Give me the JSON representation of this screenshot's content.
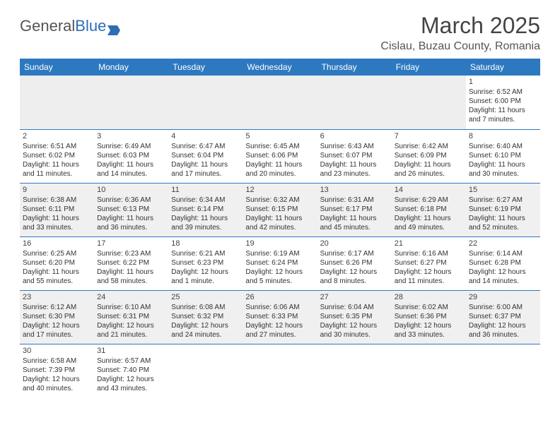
{
  "logo": {
    "text1": "General",
    "text2": "Blue"
  },
  "title": "March 2025",
  "location": "Cislau, Buzau County, Romania",
  "colors": {
    "header_bg": "#2d79c0",
    "header_text": "#ffffff",
    "rule": "#2d79c0",
    "alt_row_bg": "#f0f0f0",
    "text": "#333333",
    "logo_blue": "#2d6eb5"
  },
  "dayNames": [
    "Sunday",
    "Monday",
    "Tuesday",
    "Wednesday",
    "Thursday",
    "Friday",
    "Saturday"
  ],
  "weeks": [
    [
      null,
      null,
      null,
      null,
      null,
      null,
      {
        "n": "1",
        "sr": "Sunrise: 6:52 AM",
        "ss": "Sunset: 6:00 PM",
        "d1": "Daylight: 11 hours",
        "d2": "and 7 minutes."
      }
    ],
    [
      {
        "n": "2",
        "sr": "Sunrise: 6:51 AM",
        "ss": "Sunset: 6:02 PM",
        "d1": "Daylight: 11 hours",
        "d2": "and 11 minutes."
      },
      {
        "n": "3",
        "sr": "Sunrise: 6:49 AM",
        "ss": "Sunset: 6:03 PM",
        "d1": "Daylight: 11 hours",
        "d2": "and 14 minutes."
      },
      {
        "n": "4",
        "sr": "Sunrise: 6:47 AM",
        "ss": "Sunset: 6:04 PM",
        "d1": "Daylight: 11 hours",
        "d2": "and 17 minutes."
      },
      {
        "n": "5",
        "sr": "Sunrise: 6:45 AM",
        "ss": "Sunset: 6:06 PM",
        "d1": "Daylight: 11 hours",
        "d2": "and 20 minutes."
      },
      {
        "n": "6",
        "sr": "Sunrise: 6:43 AM",
        "ss": "Sunset: 6:07 PM",
        "d1": "Daylight: 11 hours",
        "d2": "and 23 minutes."
      },
      {
        "n": "7",
        "sr": "Sunrise: 6:42 AM",
        "ss": "Sunset: 6:09 PM",
        "d1": "Daylight: 11 hours",
        "d2": "and 26 minutes."
      },
      {
        "n": "8",
        "sr": "Sunrise: 6:40 AM",
        "ss": "Sunset: 6:10 PM",
        "d1": "Daylight: 11 hours",
        "d2": "and 30 minutes."
      }
    ],
    [
      {
        "n": "9",
        "sr": "Sunrise: 6:38 AM",
        "ss": "Sunset: 6:11 PM",
        "d1": "Daylight: 11 hours",
        "d2": "and 33 minutes."
      },
      {
        "n": "10",
        "sr": "Sunrise: 6:36 AM",
        "ss": "Sunset: 6:13 PM",
        "d1": "Daylight: 11 hours",
        "d2": "and 36 minutes."
      },
      {
        "n": "11",
        "sr": "Sunrise: 6:34 AM",
        "ss": "Sunset: 6:14 PM",
        "d1": "Daylight: 11 hours",
        "d2": "and 39 minutes."
      },
      {
        "n": "12",
        "sr": "Sunrise: 6:32 AM",
        "ss": "Sunset: 6:15 PM",
        "d1": "Daylight: 11 hours",
        "d2": "and 42 minutes."
      },
      {
        "n": "13",
        "sr": "Sunrise: 6:31 AM",
        "ss": "Sunset: 6:17 PM",
        "d1": "Daylight: 11 hours",
        "d2": "and 45 minutes."
      },
      {
        "n": "14",
        "sr": "Sunrise: 6:29 AM",
        "ss": "Sunset: 6:18 PM",
        "d1": "Daylight: 11 hours",
        "d2": "and 49 minutes."
      },
      {
        "n": "15",
        "sr": "Sunrise: 6:27 AM",
        "ss": "Sunset: 6:19 PM",
        "d1": "Daylight: 11 hours",
        "d2": "and 52 minutes."
      }
    ],
    [
      {
        "n": "16",
        "sr": "Sunrise: 6:25 AM",
        "ss": "Sunset: 6:20 PM",
        "d1": "Daylight: 11 hours",
        "d2": "and 55 minutes."
      },
      {
        "n": "17",
        "sr": "Sunrise: 6:23 AM",
        "ss": "Sunset: 6:22 PM",
        "d1": "Daylight: 11 hours",
        "d2": "and 58 minutes."
      },
      {
        "n": "18",
        "sr": "Sunrise: 6:21 AM",
        "ss": "Sunset: 6:23 PM",
        "d1": "Daylight: 12 hours",
        "d2": "and 1 minute."
      },
      {
        "n": "19",
        "sr": "Sunrise: 6:19 AM",
        "ss": "Sunset: 6:24 PM",
        "d1": "Daylight: 12 hours",
        "d2": "and 5 minutes."
      },
      {
        "n": "20",
        "sr": "Sunrise: 6:17 AM",
        "ss": "Sunset: 6:26 PM",
        "d1": "Daylight: 12 hours",
        "d2": "and 8 minutes."
      },
      {
        "n": "21",
        "sr": "Sunrise: 6:16 AM",
        "ss": "Sunset: 6:27 PM",
        "d1": "Daylight: 12 hours",
        "d2": "and 11 minutes."
      },
      {
        "n": "22",
        "sr": "Sunrise: 6:14 AM",
        "ss": "Sunset: 6:28 PM",
        "d1": "Daylight: 12 hours",
        "d2": "and 14 minutes."
      }
    ],
    [
      {
        "n": "23",
        "sr": "Sunrise: 6:12 AM",
        "ss": "Sunset: 6:30 PM",
        "d1": "Daylight: 12 hours",
        "d2": "and 17 minutes."
      },
      {
        "n": "24",
        "sr": "Sunrise: 6:10 AM",
        "ss": "Sunset: 6:31 PM",
        "d1": "Daylight: 12 hours",
        "d2": "and 21 minutes."
      },
      {
        "n": "25",
        "sr": "Sunrise: 6:08 AM",
        "ss": "Sunset: 6:32 PM",
        "d1": "Daylight: 12 hours",
        "d2": "and 24 minutes."
      },
      {
        "n": "26",
        "sr": "Sunrise: 6:06 AM",
        "ss": "Sunset: 6:33 PM",
        "d1": "Daylight: 12 hours",
        "d2": "and 27 minutes."
      },
      {
        "n": "27",
        "sr": "Sunrise: 6:04 AM",
        "ss": "Sunset: 6:35 PM",
        "d1": "Daylight: 12 hours",
        "d2": "and 30 minutes."
      },
      {
        "n": "28",
        "sr": "Sunrise: 6:02 AM",
        "ss": "Sunset: 6:36 PM",
        "d1": "Daylight: 12 hours",
        "d2": "and 33 minutes."
      },
      {
        "n": "29",
        "sr": "Sunrise: 6:00 AM",
        "ss": "Sunset: 6:37 PM",
        "d1": "Daylight: 12 hours",
        "d2": "and 36 minutes."
      }
    ],
    [
      {
        "n": "30",
        "sr": "Sunrise: 6:58 AM",
        "ss": "Sunset: 7:39 PM",
        "d1": "Daylight: 12 hours",
        "d2": "and 40 minutes."
      },
      {
        "n": "31",
        "sr": "Sunrise: 6:57 AM",
        "ss": "Sunset: 7:40 PM",
        "d1": "Daylight: 12 hours",
        "d2": "and 43 minutes."
      },
      null,
      null,
      null,
      null,
      null
    ]
  ]
}
